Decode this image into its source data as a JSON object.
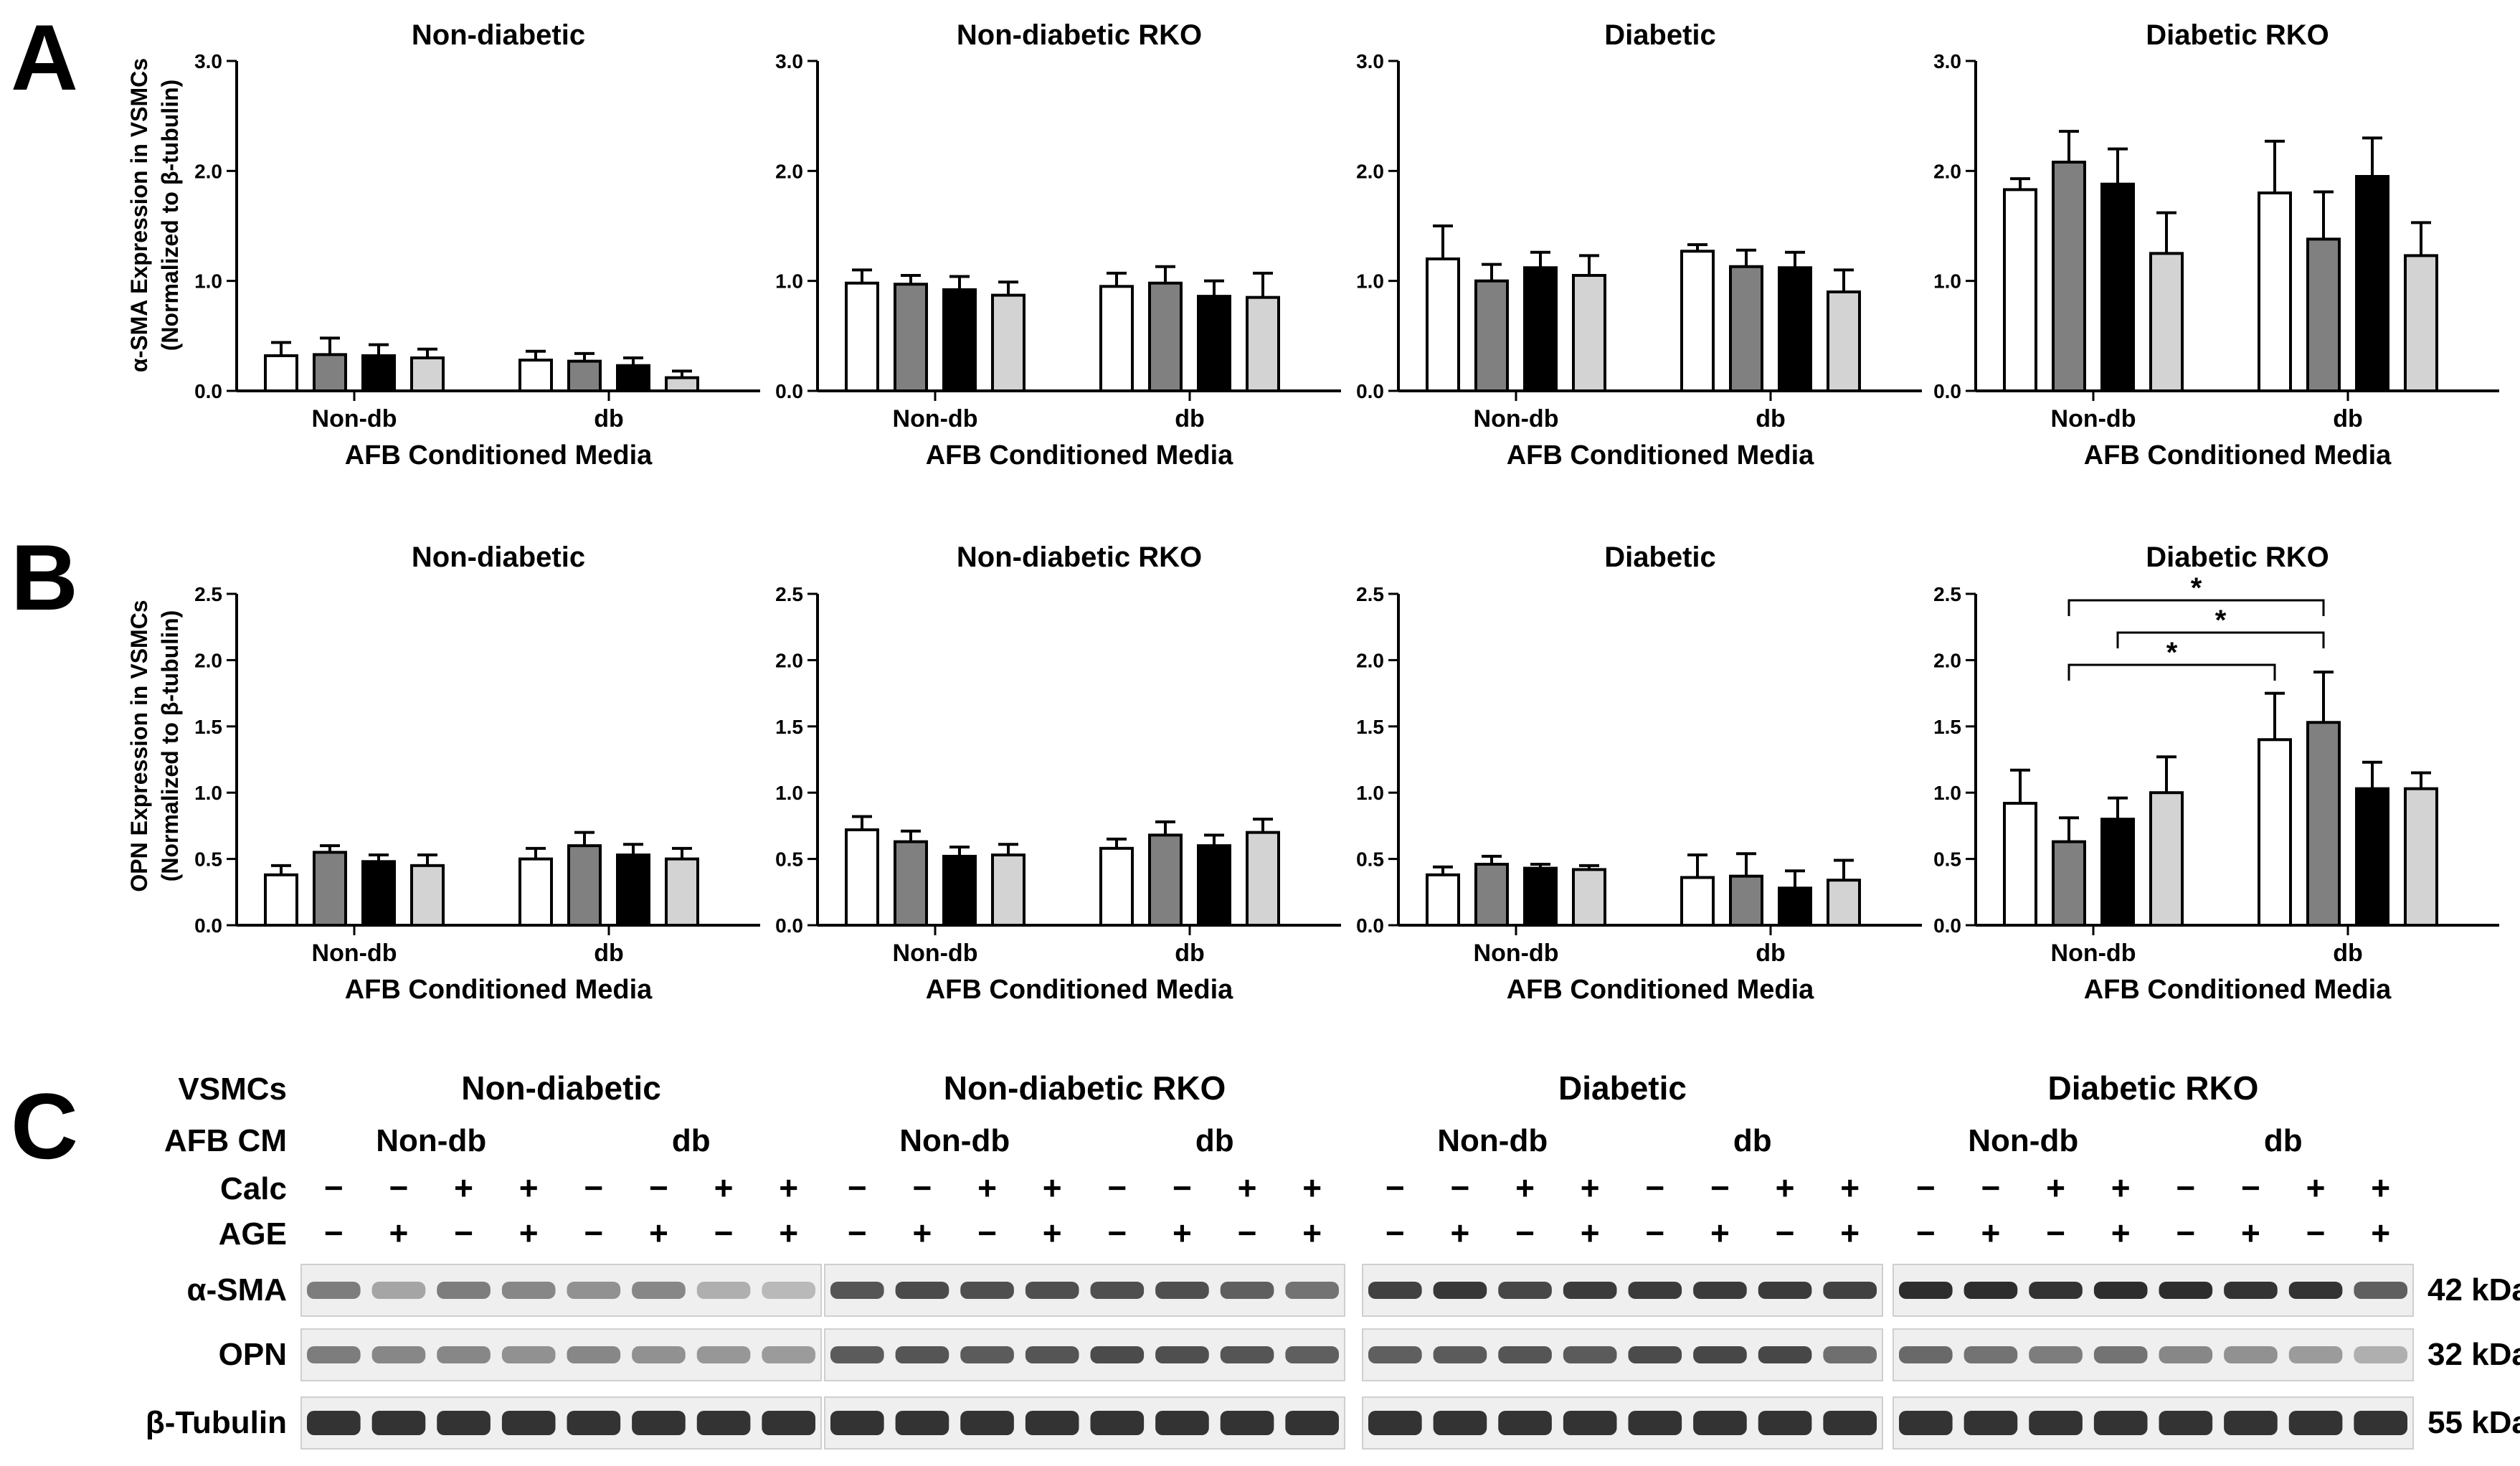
{
  "panel_labels": {
    "a": "A",
    "b": "B",
    "c": "C"
  },
  "shared": {
    "group_labels": [
      "Non-db",
      "db"
    ],
    "xlabel": "AFB Conditioned Media",
    "bar_fills": [
      "#ffffff",
      "#808080",
      "#000000",
      "#d3d3d3"
    ]
  },
  "row_a": {
    "ylabel_line1": "α-SMA Expression in VSMCs",
    "ylabel_line2": "(Normalized to β-tubulin)",
    "yticks": [
      "0.0",
      "1.0",
      "2.0",
      "3.0"
    ]
  },
  "row_b": {
    "ylabel_line1": "OPN Expression in VSMCs",
    "ylabel_line2": "(Normalized to β-tubulin)",
    "yticks": [
      "0.0",
      "0.5",
      "1.0",
      "1.5",
      "2.0",
      "2.5"
    ]
  },
  "chart_data": [
    {
      "type": "bar",
      "row": "A",
      "title": "Non-diabetic",
      "categories": [
        "Non-db",
        "db"
      ],
      "ylim": [
        0,
        3
      ],
      "series": [
        {
          "name": "Calc − / AGE −",
          "values": [
            0.32,
            0.28
          ],
          "errors": [
            0.12,
            0.08
          ]
        },
        {
          "name": "Calc − / AGE +",
          "values": [
            0.33,
            0.27
          ],
          "errors": [
            0.15,
            0.07
          ]
        },
        {
          "name": "Calc + / AGE −",
          "values": [
            0.32,
            0.23
          ],
          "errors": [
            0.1,
            0.07
          ]
        },
        {
          "name": "Calc + / AGE +",
          "values": [
            0.3,
            0.12
          ],
          "errors": [
            0.08,
            0.06
          ]
        }
      ]
    },
    {
      "type": "bar",
      "row": "A",
      "title": "Non-diabetic RKO",
      "categories": [
        "Non-db",
        "db"
      ],
      "ylim": [
        0,
        3
      ],
      "series": [
        {
          "name": "Calc − / AGE −",
          "values": [
            0.98,
            0.95
          ],
          "errors": [
            0.12,
            0.12
          ]
        },
        {
          "name": "Calc − / AGE +",
          "values": [
            0.97,
            0.98
          ],
          "errors": [
            0.08,
            0.15
          ]
        },
        {
          "name": "Calc + / AGE −",
          "values": [
            0.92,
            0.86
          ],
          "errors": [
            0.12,
            0.14
          ]
        },
        {
          "name": "Calc + / AGE +",
          "values": [
            0.87,
            0.85
          ],
          "errors": [
            0.12,
            0.22
          ]
        }
      ]
    },
    {
      "type": "bar",
      "row": "A",
      "title": "Diabetic",
      "categories": [
        "Non-db",
        "db"
      ],
      "ylim": [
        0,
        3
      ],
      "series": [
        {
          "name": "Calc − / AGE −",
          "values": [
            1.2,
            1.27
          ],
          "errors": [
            0.3,
            0.06
          ]
        },
        {
          "name": "Calc − / AGE +",
          "values": [
            1.0,
            1.13
          ],
          "errors": [
            0.15,
            0.15
          ]
        },
        {
          "name": "Calc + / AGE −",
          "values": [
            1.12,
            1.12
          ],
          "errors": [
            0.14,
            0.14
          ]
        },
        {
          "name": "Calc + / AGE +",
          "values": [
            1.05,
            0.9
          ],
          "errors": [
            0.18,
            0.2
          ]
        }
      ]
    },
    {
      "type": "bar",
      "row": "A",
      "title": "Diabetic RKO",
      "categories": [
        "Non-db",
        "db"
      ],
      "ylim": [
        0,
        3
      ],
      "series": [
        {
          "name": "Calc − / AGE −",
          "values": [
            1.83,
            1.8
          ],
          "errors": [
            0.1,
            0.47
          ]
        },
        {
          "name": "Calc − / AGE +",
          "values": [
            2.08,
            1.38
          ],
          "errors": [
            0.28,
            0.43
          ]
        },
        {
          "name": "Calc + / AGE −",
          "values": [
            1.88,
            1.95
          ],
          "errors": [
            0.32,
            0.35
          ]
        },
        {
          "name": "Calc + / AGE +",
          "values": [
            1.25,
            1.23
          ],
          "errors": [
            0.37,
            0.3
          ]
        }
      ]
    },
    {
      "type": "bar",
      "row": "B",
      "title": "Non-diabetic",
      "categories": [
        "Non-db",
        "db"
      ],
      "ylim": [
        0,
        2.5
      ],
      "series": [
        {
          "name": "Calc − / AGE −",
          "values": [
            0.38,
            0.5
          ],
          "errors": [
            0.07,
            0.08
          ]
        },
        {
          "name": "Calc − / AGE +",
          "values": [
            0.55,
            0.6
          ],
          "errors": [
            0.05,
            0.1
          ]
        },
        {
          "name": "Calc + / AGE −",
          "values": [
            0.48,
            0.53
          ],
          "errors": [
            0.05,
            0.08
          ]
        },
        {
          "name": "Calc + / AGE +",
          "values": [
            0.45,
            0.5
          ],
          "errors": [
            0.08,
            0.08
          ]
        }
      ]
    },
    {
      "type": "bar",
      "row": "B",
      "title": "Non-diabetic RKO",
      "categories": [
        "Non-db",
        "db"
      ],
      "ylim": [
        0,
        2.5
      ],
      "series": [
        {
          "name": "Calc − / AGE −",
          "values": [
            0.72,
            0.58
          ],
          "errors": [
            0.1,
            0.07
          ]
        },
        {
          "name": "Calc − / AGE +",
          "values": [
            0.63,
            0.68
          ],
          "errors": [
            0.08,
            0.1
          ]
        },
        {
          "name": "Calc + / AGE −",
          "values": [
            0.52,
            0.6
          ],
          "errors": [
            0.07,
            0.08
          ]
        },
        {
          "name": "Calc + / AGE +",
          "values": [
            0.53,
            0.7
          ],
          "errors": [
            0.08,
            0.1
          ]
        }
      ]
    },
    {
      "type": "bar",
      "row": "B",
      "title": "Diabetic",
      "categories": [
        "Non-db",
        "db"
      ],
      "ylim": [
        0,
        2.5
      ],
      "series": [
        {
          "name": "Calc − / AGE −",
          "values": [
            0.38,
            0.36
          ],
          "errors": [
            0.06,
            0.17
          ]
        },
        {
          "name": "Calc − / AGE +",
          "values": [
            0.46,
            0.37
          ],
          "errors": [
            0.06,
            0.17
          ]
        },
        {
          "name": "Calc + / AGE −",
          "values": [
            0.43,
            0.28
          ],
          "errors": [
            0.03,
            0.13
          ]
        },
        {
          "name": "Calc + / AGE +",
          "values": [
            0.42,
            0.34
          ],
          "errors": [
            0.03,
            0.15
          ]
        }
      ]
    },
    {
      "type": "bar",
      "row": "B",
      "title": "Diabetic RKO",
      "categories": [
        "Non-db",
        "db"
      ],
      "ylim": [
        0,
        2.5
      ],
      "series": [
        {
          "name": "Calc − / AGE −",
          "values": [
            0.92,
            1.4
          ],
          "errors": [
            0.25,
            0.35
          ]
        },
        {
          "name": "Calc − / AGE +",
          "values": [
            0.63,
            1.53
          ],
          "errors": [
            0.18,
            0.38
          ]
        },
        {
          "name": "Calc + / AGE −",
          "values": [
            0.8,
            1.03
          ],
          "errors": [
            0.16,
            0.2
          ]
        },
        {
          "name": "Calc + / AGE +",
          "values": [
            1.0,
            1.03
          ],
          "errors": [
            0.27,
            0.12
          ]
        }
      ]
    }
  ],
  "significance": [
    {
      "from": "Non-db · Calc − / AGE +",
      "to": "db · Calc − / AGE +",
      "label": "*"
    },
    {
      "from": "Non-db · Calc − / AGE +",
      "to": "db · Calc − / AGE −",
      "label": "*"
    },
    {
      "from": "Non-db · Calc + / AGE −",
      "to": "db · Calc − / AGE +",
      "label": "*"
    }
  ],
  "blot": {
    "row_headers": [
      "VSMCs",
      "AFB CM",
      "Calc",
      "AGE"
    ],
    "groups": [
      {
        "title": "Non-diabetic",
        "cm_left": "Non-db",
        "cm_right": "db"
      },
      {
        "title": "Non-diabetic RKO",
        "cm_left": "Non-db",
        "cm_right": "db"
      },
      {
        "title": "Diabetic",
        "cm_left": "Non-db",
        "cm_right": "db"
      },
      {
        "title": "Diabetic RKO",
        "cm_left": "Non-db",
        "cm_right": "db"
      }
    ],
    "calc": [
      "−",
      "−",
      "+",
      "+",
      "−",
      "−",
      "+",
      "+"
    ],
    "age": [
      "−",
      "+",
      "−",
      "+",
      "−",
      "+",
      "−",
      "+"
    ],
    "proteins": [
      {
        "name": "α-SMA",
        "kda": "42 kDa"
      },
      {
        "name": "OPN",
        "kda": "32 kDa"
      },
      {
        "name": "β-Tubulin",
        "kda": "55 kDa"
      }
    ],
    "intensity": [
      [
        [
          0.55,
          0.35,
          0.55,
          0.5,
          0.45,
          0.5,
          0.3,
          0.25
        ],
        [
          0.55,
          0.5,
          0.5,
          0.45,
          0.5,
          0.45,
          0.42,
          0.4
        ]
      ],
      [
        [
          0.75,
          0.8,
          0.78,
          0.78,
          0.78,
          0.78,
          0.7,
          0.6
        ],
        [
          0.72,
          0.75,
          0.72,
          0.75,
          0.8,
          0.78,
          0.75,
          0.7
        ]
      ],
      [
        [
          0.85,
          0.9,
          0.82,
          0.88,
          0.88,
          0.88,
          0.88,
          0.85
        ],
        [
          0.7,
          0.72,
          0.75,
          0.72,
          0.8,
          0.82,
          0.82,
          0.62
        ]
      ],
      [
        [
          0.95,
          0.95,
          0.92,
          0.95,
          0.95,
          0.92,
          0.92,
          0.7
        ],
        [
          0.65,
          0.6,
          0.55,
          0.6,
          0.5,
          0.45,
          0.4,
          0.3
        ]
      ]
    ]
  }
}
